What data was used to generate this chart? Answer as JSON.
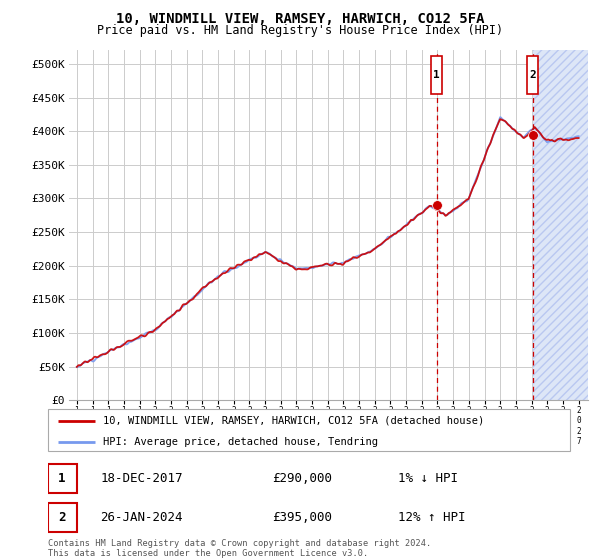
{
  "title": "10, WINDMILL VIEW, RAMSEY, HARWICH, CO12 5FA",
  "subtitle": "Price paid vs. HM Land Registry's House Price Index (HPI)",
  "ylim": [
    0,
    520000
  ],
  "yticks": [
    0,
    50000,
    100000,
    150000,
    200000,
    250000,
    300000,
    350000,
    400000,
    450000,
    500000
  ],
  "ytick_labels": [
    "£0",
    "£50K",
    "£100K",
    "£150K",
    "£200K",
    "£250K",
    "£300K",
    "£350K",
    "£400K",
    "£450K",
    "£500K"
  ],
  "hpi_color": "#7799ee",
  "price_color": "#cc0000",
  "vline_color": "#cc0000",
  "hatch_color": "#c8d4f0",
  "legend_line1": "10, WINDMILL VIEW, RAMSEY, HARWICH, CO12 5FA (detached house)",
  "legend_line2": "HPI: Average price, detached house, Tendring",
  "table_row1_num": "1",
  "table_row1_date": "18-DEC-2017",
  "table_row1_price": "£290,000",
  "table_row1_hpi": "1% ↓ HPI",
  "table_row2_num": "2",
  "table_row2_date": "26-JAN-2024",
  "table_row2_price": "£395,000",
  "table_row2_hpi": "12% ↑ HPI",
  "footer": "Contains HM Land Registry data © Crown copyright and database right 2024.\nThis data is licensed under the Open Government Licence v3.0.",
  "marker1_year": 2017.96,
  "marker2_year": 2024.07,
  "marker1_value": 290000,
  "marker2_value": 395000
}
